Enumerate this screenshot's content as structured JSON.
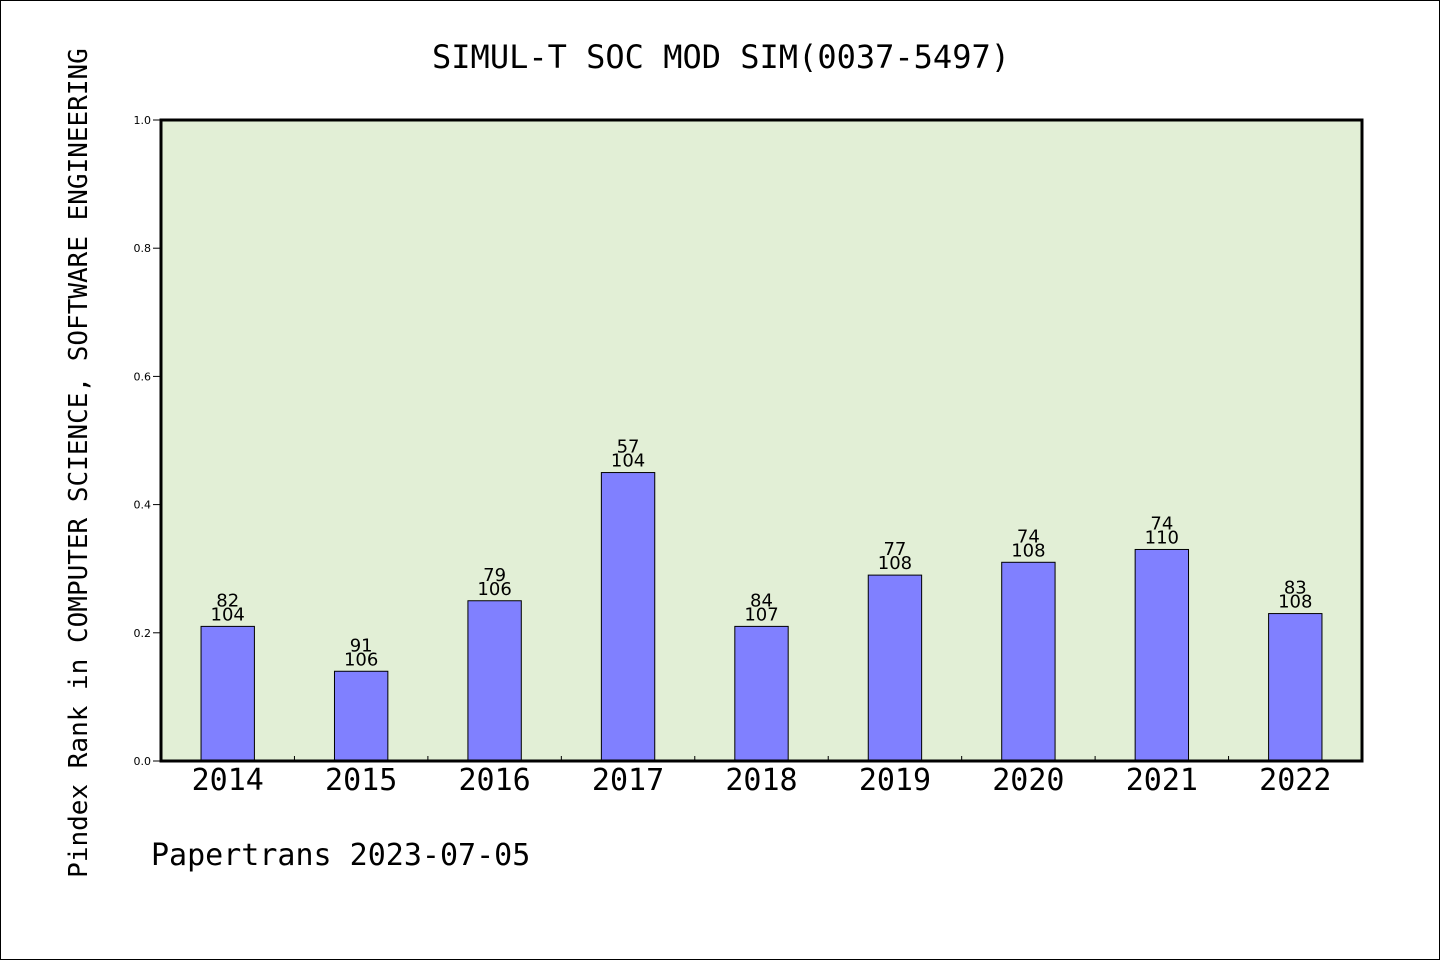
{
  "chart_data": {
    "type": "bar",
    "title": "SIMUL-T SOC MOD SIM(0037-5497)",
    "xlabel": "",
    "ylabel": "Pindex Rank in COMPUTER SCIENCE, SOFTWARE ENGINEERING",
    "categories": [
      "2014",
      "2015",
      "2016",
      "2017",
      "2018",
      "2019",
      "2020",
      "2021",
      "2022"
    ],
    "values": [
      0.21,
      0.14,
      0.25,
      0.45,
      0.21,
      0.29,
      0.31,
      0.33,
      0.23
    ],
    "label_top": [
      "82",
      "91",
      "79",
      "57",
      "84",
      "77",
      "74",
      "74",
      "83"
    ],
    "label_bottom": [
      "104",
      "106",
      "106",
      "104",
      "107",
      "108",
      "108",
      "110",
      "108"
    ],
    "ylim": [
      0,
      1.0
    ],
    "yticks": [
      "0.0",
      "0.2",
      "0.4",
      "0.6",
      "0.8",
      "1.0"
    ],
    "grid": false,
    "legend": "none",
    "colors": {
      "bar": "#8080ff",
      "plot_background": "#e2efd6",
      "axis": "#000000"
    }
  },
  "footer": {
    "text": "Papertrans 2023-07-05"
  }
}
